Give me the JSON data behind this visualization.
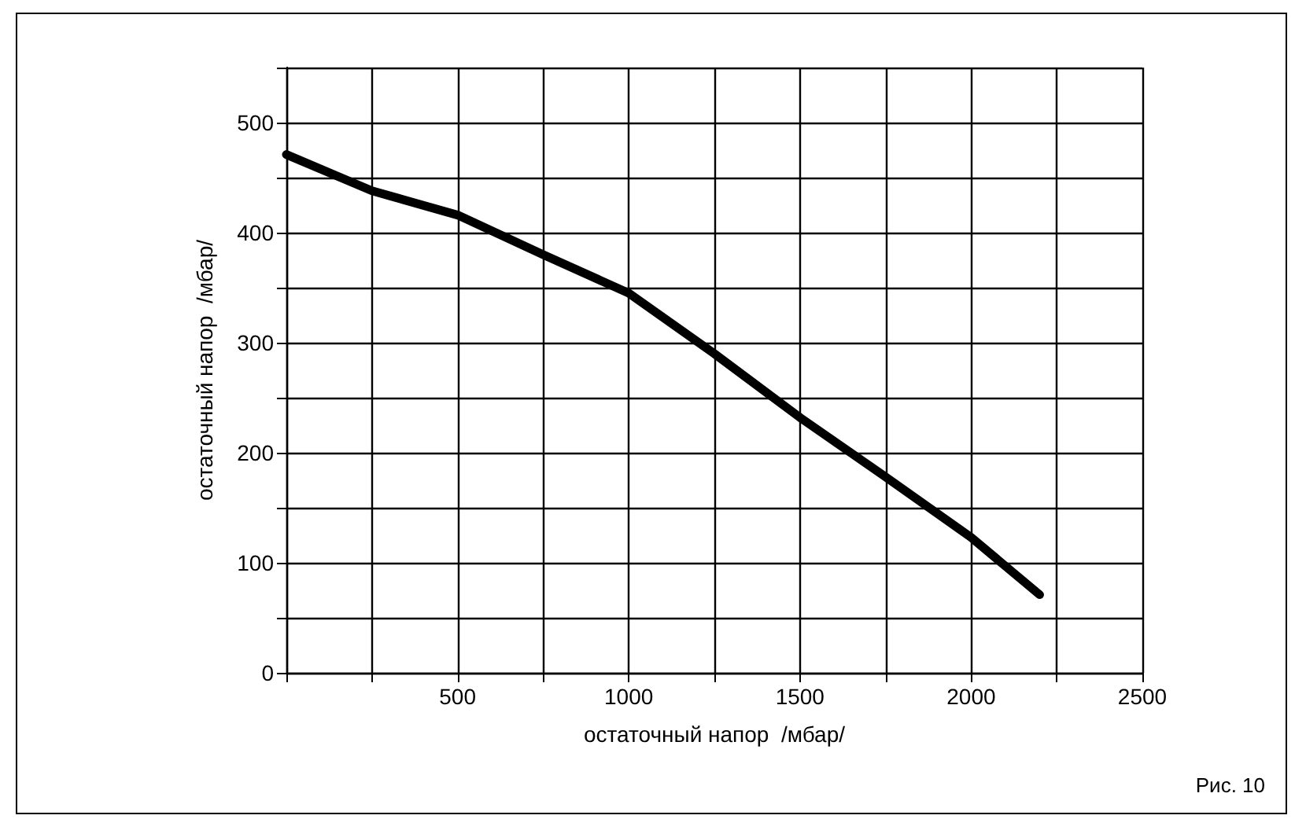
{
  "chart_data": {
    "type": "line",
    "xlabel": "остаточный напор  /мбар/",
    "ylabel": "остаточный напор  /мбар/",
    "annotations": [
      "Рис. 10"
    ],
    "x": [
      0,
      250,
      500,
      750,
      1000,
      1250,
      1500,
      1750,
      2000,
      2200
    ],
    "series": [
      {
        "color": "#000000",
        "values": [
          471,
          438,
          416,
          380,
          345,
          290,
          232,
          178,
          123,
          71
        ]
      }
    ],
    "xlim": [
      0,
      2500
    ],
    "xticks": [
      {
        "value": 0,
        "label": null
      },
      {
        "value": 250,
        "label": null
      },
      500,
      {
        "value": 750,
        "label": null
      },
      1000,
      {
        "value": 1250,
        "label": null
      },
      1500,
      {
        "value": 1750,
        "label": null
      },
      2000,
      {
        "value": 2250,
        "label": null
      },
      2500
    ],
    "ylim": [
      0,
      550
    ],
    "yticks": [
      0,
      {
        "value": 50,
        "label": null
      },
      100,
      {
        "value": 150,
        "label": null
      },
      200,
      {
        "value": 250,
        "label": null
      },
      300,
      {
        "value": 350,
        "label": null
      },
      400,
      {
        "value": 450,
        "label": null
      },
      500,
      {
        "value": 550,
        "label": null
      }
    ],
    "grid": true,
    "marker": "none",
    "line_style": "solid"
  }
}
